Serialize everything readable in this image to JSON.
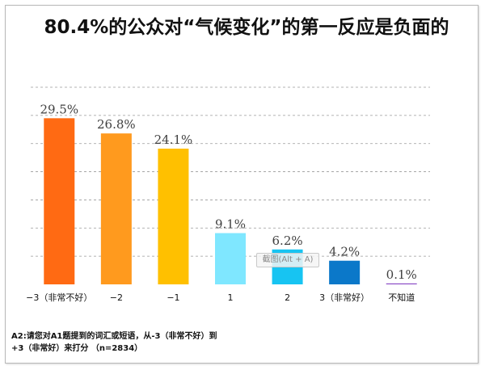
{
  "title": "80.4%的公众对“气候变化”的第一反应是负面的",
  "tooltip": "截图(Alt + A)",
  "footnote": {
    "line1": "A2:请您对A1题提到的词汇或短语，从-3（非常不好）到",
    "line2": "+3（非常好）来打分 （n=2834）"
  },
  "chart_data": {
    "type": "bar",
    "title": "80.4%的公众对“气候变化”的第一反应是负面的",
    "categories": [
      "−3（非常不好）",
      "−2",
      "−1",
      "1",
      "2",
      "3（非常好）",
      "不知道"
    ],
    "values": [
      29.5,
      26.8,
      24.1,
      9.1,
      6.2,
      4.2,
      0.1
    ],
    "value_labels": [
      "29.5%",
      "26.8%",
      "24.1%",
      "9.1%",
      "6.2%",
      "4.2%",
      "0.1%"
    ],
    "colors": [
      "#ff6a13",
      "#ff9a1e",
      "#ffc000",
      "#7fe7ff",
      "#17c4f2",
      "#0b78c9",
      "#8a4bc6"
    ],
    "ylim": [
      0,
      35
    ],
    "grid": true,
    "xlabel": "",
    "ylabel": ""
  }
}
